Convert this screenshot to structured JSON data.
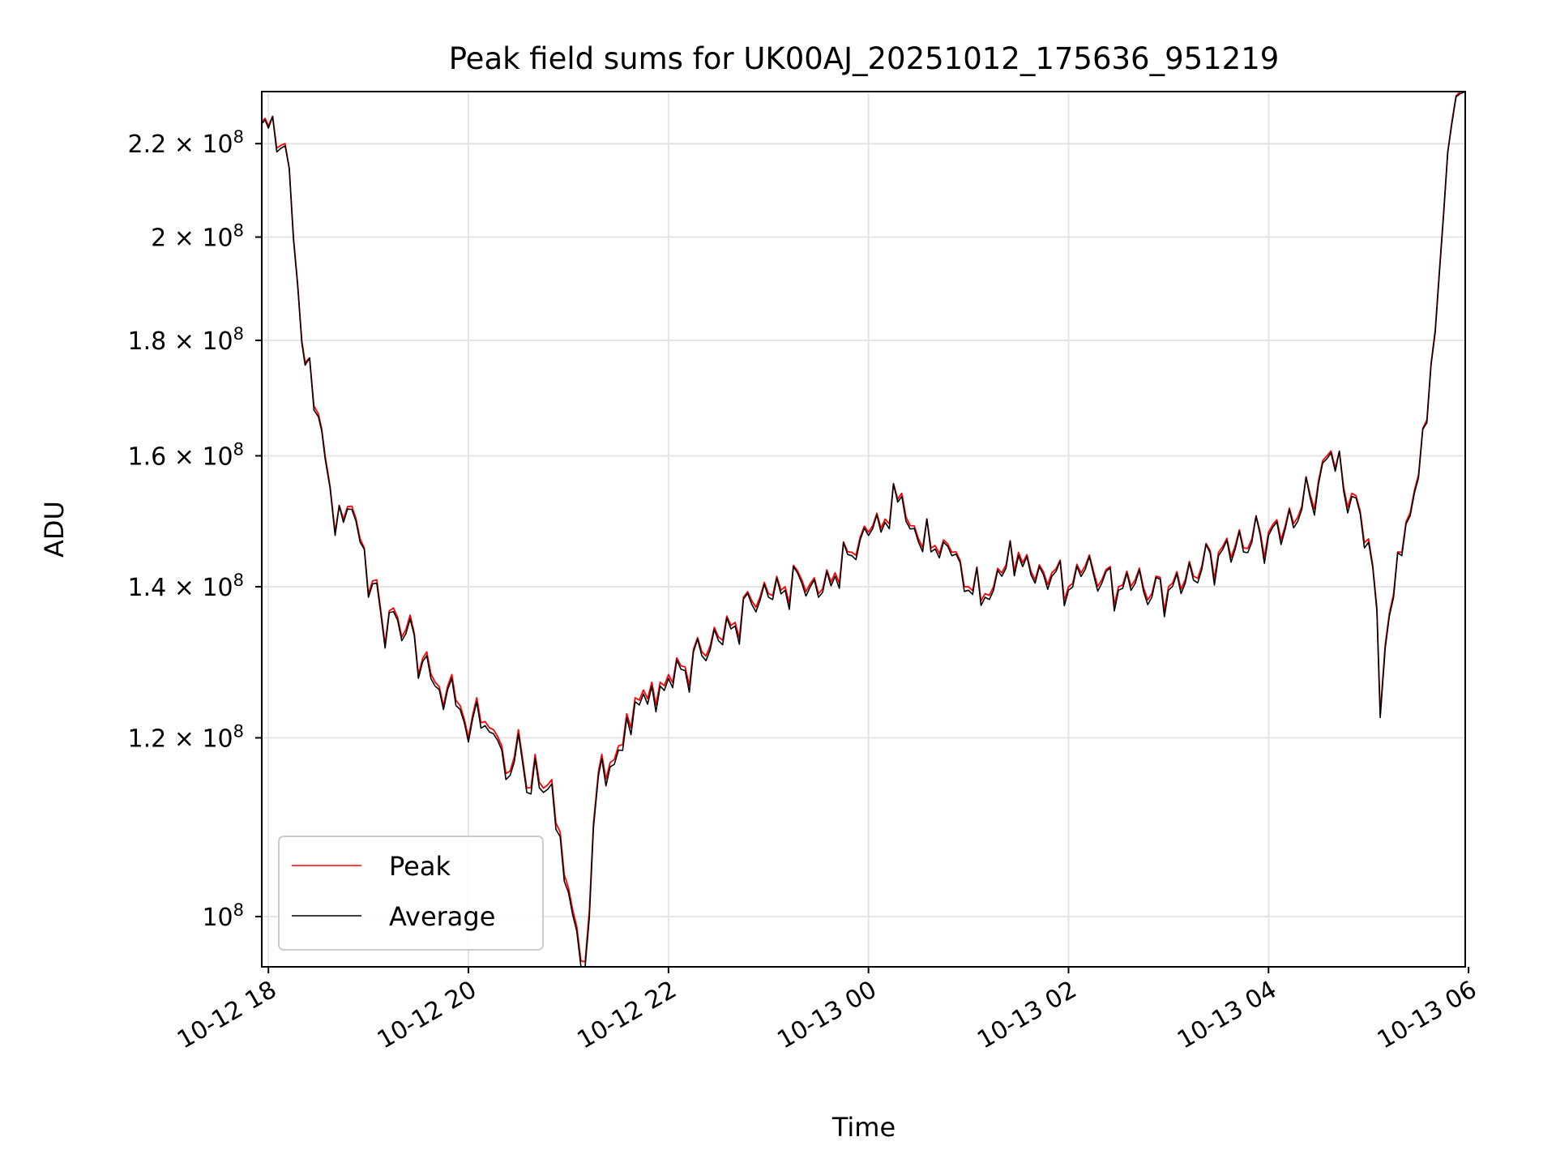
{
  "chart_data": {
    "type": "line",
    "title": "Peak field sums for UK00AJ_20251012_175636_951219",
    "xlabel": "Time",
    "ylabel": "ADU",
    "yscale": "log",
    "grid": true,
    "legend_position": "lower-left",
    "xlim": [
      "2025-10-12 17:56",
      "2025-10-13 05:58"
    ],
    "ylim": [
      95000000,
      232000000
    ],
    "x_ticks": [
      {
        "value": "2025-10-12 18:00",
        "label": "10-12 18"
      },
      {
        "value": "2025-10-12 20:00",
        "label": "10-12 20"
      },
      {
        "value": "2025-10-12 22:00",
        "label": "10-12 22"
      },
      {
        "value": "2025-10-13 00:00",
        "label": "10-13 00"
      },
      {
        "value": "2025-10-13 02:00",
        "label": "10-13 02"
      },
      {
        "value": "2025-10-13 04:00",
        "label": "10-13 04"
      },
      {
        "value": "2025-10-13 06:00",
        "label": "10-13 06"
      }
    ],
    "y_ticks": [
      {
        "value": 100000000,
        "mant": "",
        "label": "10"
      },
      {
        "value": 120000000,
        "mant": "1.2 × ",
        "label": "10"
      },
      {
        "value": 140000000,
        "mant": "1.4 × ",
        "label": "10"
      },
      {
        "value": 160000000,
        "mant": "1.6 × ",
        "label": "10"
      },
      {
        "value": 180000000,
        "mant": "1.8 × ",
        "label": "10"
      },
      {
        "value": 200000000,
        "mant": "2 × ",
        "label": "10"
      },
      {
        "value": 220000000,
        "mant": "2.2 × ",
        "label": "10"
      }
    ],
    "y_tick_exponent": "8",
    "x": [
      "2025-10-12 17:56",
      "2025-10-12 18:00",
      "2025-10-12 18:10",
      "2025-10-12 18:15",
      "2025-10-12 18:20",
      "2025-10-12 18:22",
      "2025-10-12 18:30",
      "2025-10-12 18:34",
      "2025-10-12 18:40",
      "2025-10-12 18:45",
      "2025-10-12 18:50",
      "2025-10-12 18:55",
      "2025-10-12 19:00",
      "2025-10-12 19:05",
      "2025-10-12 19:10",
      "2025-10-12 19:15",
      "2025-10-12 19:20",
      "2025-10-12 19:25",
      "2025-10-12 19:30",
      "2025-10-12 19:35",
      "2025-10-12 19:40",
      "2025-10-12 19:45",
      "2025-10-12 19:50",
      "2025-10-12 19:55",
      "2025-10-12 20:00",
      "2025-10-12 20:05",
      "2025-10-12 20:10",
      "2025-10-12 20:15",
      "2025-10-12 20:20",
      "2025-10-12 20:25",
      "2025-10-12 20:30",
      "2025-10-12 20:35",
      "2025-10-12 20:40",
      "2025-10-12 20:45",
      "2025-10-12 20:50",
      "2025-10-12 20:55",
      "2025-10-12 21:00",
      "2025-10-12 21:05",
      "2025-10-12 21:10",
      "2025-10-12 21:15",
      "2025-10-12 21:18",
      "2025-10-12 21:20",
      "2025-10-12 21:25",
      "2025-10-12 21:30",
      "2025-10-12 21:35",
      "2025-10-12 21:40",
      "2025-10-12 21:45",
      "2025-10-12 21:50",
      "2025-10-12 21:55",
      "2025-10-12 22:00",
      "2025-10-12 22:10",
      "2025-10-12 22:20",
      "2025-10-12 22:30",
      "2025-10-12 22:40",
      "2025-10-12 22:50",
      "2025-10-12 23:00",
      "2025-10-12 23:10",
      "2025-10-12 23:20",
      "2025-10-12 23:30",
      "2025-10-12 23:40",
      "2025-10-12 23:50",
      "2025-10-13 00:00",
      "2025-10-13 00:10",
      "2025-10-13 00:20",
      "2025-10-13 00:25",
      "2025-10-13 00:30",
      "2025-10-13 00:40",
      "2025-10-13 00:50",
      "2025-10-13 01:00",
      "2025-10-13 01:10",
      "2025-10-13 01:15",
      "2025-10-13 01:20",
      "2025-10-13 01:30",
      "2025-10-13 01:40",
      "2025-10-13 01:50",
      "2025-10-13 02:00",
      "2025-10-13 02:10",
      "2025-10-13 02:20",
      "2025-10-13 02:30",
      "2025-10-13 02:40",
      "2025-10-13 02:50",
      "2025-10-13 03:00",
      "2025-10-13 03:10",
      "2025-10-13 03:20",
      "2025-10-13 03:30",
      "2025-10-13 03:40",
      "2025-10-13 03:50",
      "2025-10-13 04:00",
      "2025-10-13 04:10",
      "2025-10-13 04:20",
      "2025-10-13 04:30",
      "2025-10-13 04:35",
      "2025-10-13 04:40",
      "2025-10-13 04:50",
      "2025-10-13 05:00",
      "2025-10-13 05:05",
      "2025-10-13 05:07",
      "2025-10-13 05:10",
      "2025-10-13 05:15",
      "2025-10-13 05:20",
      "2025-10-13 05:25",
      "2025-10-13 05:30",
      "2025-10-13 05:35",
      "2025-10-13 05:40",
      "2025-10-13 05:45",
      "2025-10-13 05:50",
      "2025-10-13 05:55",
      "2025-10-13 05:58"
    ],
    "series": [
      {
        "name": "Peak",
        "color": "#ff0000",
        "values": [
          225000000,
          224000000,
          220000000,
          200000000,
          180000000,
          176000000,
          167000000,
          160000000,
          148000000,
          150000000,
          152000000,
          147000000,
          139000000,
          141000000,
          132000000,
          137000000,
          133000000,
          136000000,
          128000000,
          131000000,
          127000000,
          124000000,
          128000000,
          124000000,
          120000000,
          125000000,
          122000000,
          121000000,
          119000000,
          116000000,
          121000000,
          114000000,
          118000000,
          114000000,
          115000000,
          109000000,
          103000000,
          99000000,
          95500000,
          110000000,
          116000000,
          118000000,
          117000000,
          119000000,
          123000000,
          125000000,
          126000000,
          127000000,
          127000000,
          128000000,
          129000000,
          131000000,
          133000000,
          135000000,
          138000000,
          139000000,
          140000000,
          141000000,
          139000000,
          142000000,
          145000000,
          148000000,
          150000000,
          154000000,
          149000000,
          147000000,
          146000000,
          145000000,
          140000000,
          139000000,
          140000000,
          142000000,
          145000000,
          141000000,
          142000000,
          140000000,
          143000000,
          141000000,
          140000000,
          141000000,
          139000000,
          140000000,
          141000000,
          143000000,
          145000000,
          146000000,
          147000000,
          148000000,
          149000000,
          152000000,
          156000000,
          160000000,
          158000000,
          154000000,
          147000000,
          137000000,
          123000000,
          132000000,
          139000000,
          145000000,
          151000000,
          157000000,
          166000000,
          182000000,
          205000000,
          225000000,
          232000000,
          232000000
        ]
      },
      {
        "name": "Average",
        "color": "#000000",
        "values": [
          224500000,
          223500000,
          219500000,
          199500000,
          179500000,
          175500000,
          166500000,
          159500000,
          147500000,
          149500000,
          151500000,
          146500000,
          138500000,
          140500000,
          131500000,
          136500000,
          132500000,
          135500000,
          127500000,
          130500000,
          126500000,
          123500000,
          127500000,
          123500000,
          119500000,
          124500000,
          121500000,
          120500000,
          118500000,
          115500000,
          120500000,
          113500000,
          117500000,
          113500000,
          114500000,
          108500000,
          102500000,
          98500000,
          95000000,
          109500000,
          115500000,
          117500000,
          116500000,
          118500000,
          122500000,
          124500000,
          125500000,
          126500000,
          126500000,
          127500000,
          128500000,
          130500000,
          132500000,
          134500000,
          137500000,
          138500000,
          139500000,
          140500000,
          138500000,
          141500000,
          144500000,
          147500000,
          149500000,
          153500000,
          148500000,
          146500000,
          145500000,
          144500000,
          139500000,
          138500000,
          139500000,
          141500000,
          144500000,
          140500000,
          141500000,
          139500000,
          142500000,
          140500000,
          139500000,
          140500000,
          138500000,
          139500000,
          140500000,
          142500000,
          144500000,
          145500000,
          146500000,
          147500000,
          148500000,
          151500000,
          155500000,
          159500000,
          157500000,
          153500000,
          146500000,
          136500000,
          122500000,
          131500000,
          138500000,
          144500000,
          150500000,
          156500000,
          165500000,
          181500000,
          204500000,
          224500000,
          231500000,
          232000000
        ]
      }
    ]
  }
}
